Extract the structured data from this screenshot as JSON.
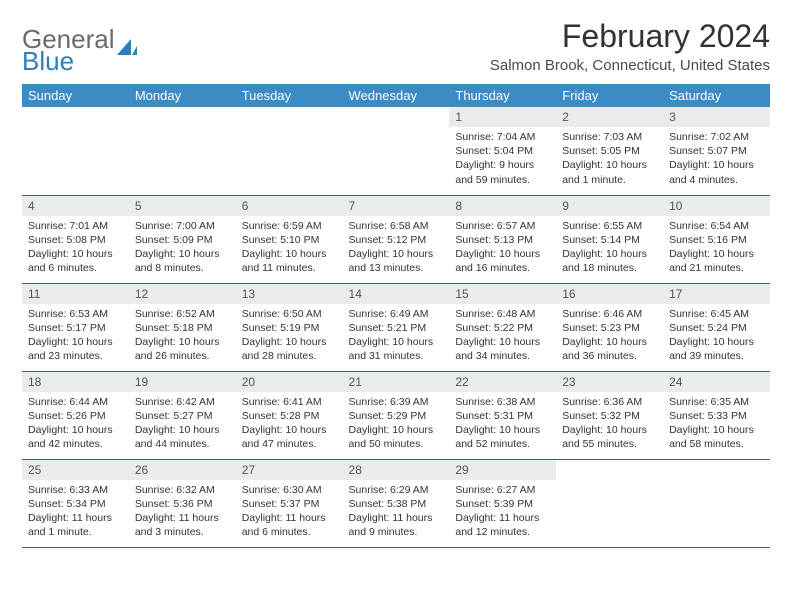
{
  "logo": {
    "general": "General",
    "blue": "Blue"
  },
  "title": "February 2024",
  "location": "Salmon Brook, Connecticut, United States",
  "colors": {
    "header_bg": "#3b8bc4",
    "header_text": "#ffffff",
    "daynum_bg": "#ebebeb",
    "daynum_text": "#555555",
    "border": "#3b5a7a",
    "logo_gray": "#6b6b6b",
    "logo_blue": "#2c7fb8"
  },
  "day_names": [
    "Sunday",
    "Monday",
    "Tuesday",
    "Wednesday",
    "Thursday",
    "Friday",
    "Saturday"
  ],
  "weeks": [
    [
      null,
      null,
      null,
      null,
      {
        "num": "1",
        "sunrise": "Sunrise: 7:04 AM",
        "sunset": "Sunset: 5:04 PM",
        "daylight": "Daylight: 9 hours and 59 minutes."
      },
      {
        "num": "2",
        "sunrise": "Sunrise: 7:03 AM",
        "sunset": "Sunset: 5:05 PM",
        "daylight": "Daylight: 10 hours and 1 minute."
      },
      {
        "num": "3",
        "sunrise": "Sunrise: 7:02 AM",
        "sunset": "Sunset: 5:07 PM",
        "daylight": "Daylight: 10 hours and 4 minutes."
      }
    ],
    [
      {
        "num": "4",
        "sunrise": "Sunrise: 7:01 AM",
        "sunset": "Sunset: 5:08 PM",
        "daylight": "Daylight: 10 hours and 6 minutes."
      },
      {
        "num": "5",
        "sunrise": "Sunrise: 7:00 AM",
        "sunset": "Sunset: 5:09 PM",
        "daylight": "Daylight: 10 hours and 8 minutes."
      },
      {
        "num": "6",
        "sunrise": "Sunrise: 6:59 AM",
        "sunset": "Sunset: 5:10 PM",
        "daylight": "Daylight: 10 hours and 11 minutes."
      },
      {
        "num": "7",
        "sunrise": "Sunrise: 6:58 AM",
        "sunset": "Sunset: 5:12 PM",
        "daylight": "Daylight: 10 hours and 13 minutes."
      },
      {
        "num": "8",
        "sunrise": "Sunrise: 6:57 AM",
        "sunset": "Sunset: 5:13 PM",
        "daylight": "Daylight: 10 hours and 16 minutes."
      },
      {
        "num": "9",
        "sunrise": "Sunrise: 6:55 AM",
        "sunset": "Sunset: 5:14 PM",
        "daylight": "Daylight: 10 hours and 18 minutes."
      },
      {
        "num": "10",
        "sunrise": "Sunrise: 6:54 AM",
        "sunset": "Sunset: 5:16 PM",
        "daylight": "Daylight: 10 hours and 21 minutes."
      }
    ],
    [
      {
        "num": "11",
        "sunrise": "Sunrise: 6:53 AM",
        "sunset": "Sunset: 5:17 PM",
        "daylight": "Daylight: 10 hours and 23 minutes."
      },
      {
        "num": "12",
        "sunrise": "Sunrise: 6:52 AM",
        "sunset": "Sunset: 5:18 PM",
        "daylight": "Daylight: 10 hours and 26 minutes."
      },
      {
        "num": "13",
        "sunrise": "Sunrise: 6:50 AM",
        "sunset": "Sunset: 5:19 PM",
        "daylight": "Daylight: 10 hours and 28 minutes."
      },
      {
        "num": "14",
        "sunrise": "Sunrise: 6:49 AM",
        "sunset": "Sunset: 5:21 PM",
        "daylight": "Daylight: 10 hours and 31 minutes."
      },
      {
        "num": "15",
        "sunrise": "Sunrise: 6:48 AM",
        "sunset": "Sunset: 5:22 PM",
        "daylight": "Daylight: 10 hours and 34 minutes."
      },
      {
        "num": "16",
        "sunrise": "Sunrise: 6:46 AM",
        "sunset": "Sunset: 5:23 PM",
        "daylight": "Daylight: 10 hours and 36 minutes."
      },
      {
        "num": "17",
        "sunrise": "Sunrise: 6:45 AM",
        "sunset": "Sunset: 5:24 PM",
        "daylight": "Daylight: 10 hours and 39 minutes."
      }
    ],
    [
      {
        "num": "18",
        "sunrise": "Sunrise: 6:44 AM",
        "sunset": "Sunset: 5:26 PM",
        "daylight": "Daylight: 10 hours and 42 minutes."
      },
      {
        "num": "19",
        "sunrise": "Sunrise: 6:42 AM",
        "sunset": "Sunset: 5:27 PM",
        "daylight": "Daylight: 10 hours and 44 minutes."
      },
      {
        "num": "20",
        "sunrise": "Sunrise: 6:41 AM",
        "sunset": "Sunset: 5:28 PM",
        "daylight": "Daylight: 10 hours and 47 minutes."
      },
      {
        "num": "21",
        "sunrise": "Sunrise: 6:39 AM",
        "sunset": "Sunset: 5:29 PM",
        "daylight": "Daylight: 10 hours and 50 minutes."
      },
      {
        "num": "22",
        "sunrise": "Sunrise: 6:38 AM",
        "sunset": "Sunset: 5:31 PM",
        "daylight": "Daylight: 10 hours and 52 minutes."
      },
      {
        "num": "23",
        "sunrise": "Sunrise: 6:36 AM",
        "sunset": "Sunset: 5:32 PM",
        "daylight": "Daylight: 10 hours and 55 minutes."
      },
      {
        "num": "24",
        "sunrise": "Sunrise: 6:35 AM",
        "sunset": "Sunset: 5:33 PM",
        "daylight": "Daylight: 10 hours and 58 minutes."
      }
    ],
    [
      {
        "num": "25",
        "sunrise": "Sunrise: 6:33 AM",
        "sunset": "Sunset: 5:34 PM",
        "daylight": "Daylight: 11 hours and 1 minute."
      },
      {
        "num": "26",
        "sunrise": "Sunrise: 6:32 AM",
        "sunset": "Sunset: 5:36 PM",
        "daylight": "Daylight: 11 hours and 3 minutes."
      },
      {
        "num": "27",
        "sunrise": "Sunrise: 6:30 AM",
        "sunset": "Sunset: 5:37 PM",
        "daylight": "Daylight: 11 hours and 6 minutes."
      },
      {
        "num": "28",
        "sunrise": "Sunrise: 6:29 AM",
        "sunset": "Sunset: 5:38 PM",
        "daylight": "Daylight: 11 hours and 9 minutes."
      },
      {
        "num": "29",
        "sunrise": "Sunrise: 6:27 AM",
        "sunset": "Sunset: 5:39 PM",
        "daylight": "Daylight: 11 hours and 12 minutes."
      },
      null,
      null
    ]
  ]
}
